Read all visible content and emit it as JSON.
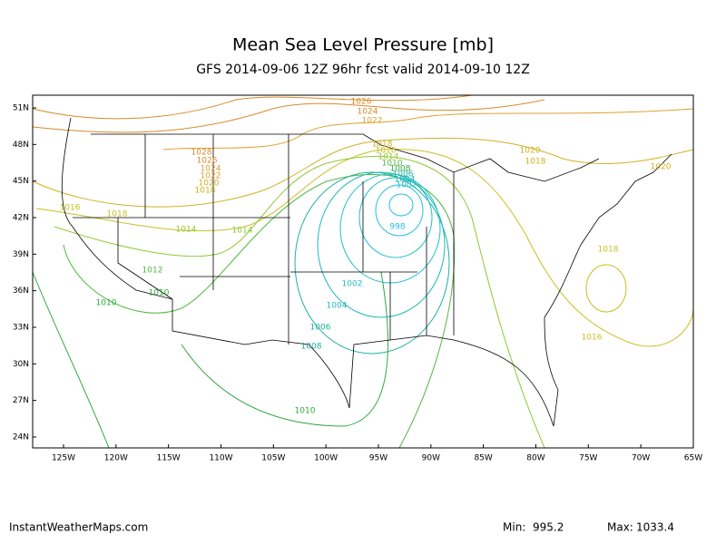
{
  "header": {
    "title": "Mean Sea Level Pressure [mb]",
    "subtitle": "GFS 2014-09-06 12Z 96hr fcst valid 2014-09-10 12Z"
  },
  "map": {
    "lat_labels": [
      "51N",
      "48N",
      "45N",
      "42N",
      "39N",
      "36N",
      "33N",
      "30N",
      "27N",
      "24N"
    ],
    "lon_labels": [
      "125W",
      "120W",
      "115W",
      "110W",
      "105W",
      "100W",
      "95W",
      "90W",
      "85W",
      "80W",
      "75W",
      "70W",
      "65W"
    ],
    "contour_labels": [
      "1026",
      "1024",
      "1022",
      "1028",
      "1026",
      "1024",
      "1022",
      "1020",
      "1018",
      "1018",
      "1016",
      "1014",
      "1010",
      "1008",
      "1006",
      "1004",
      "1002",
      "998",
      "1020",
      "1018",
      "1020",
      "1016",
      "1018",
      "1014",
      "1014",
      "1018",
      "1012",
      "1010",
      "1010",
      "1002",
      "1004",
      "1006",
      "1008",
      "1016",
      "1010"
    ]
  },
  "footer": {
    "site": "InstantWeatherMaps.com",
    "min_label": "Min:",
    "min": "995.2",
    "max_label": "Max:",
    "max": "1033.4"
  }
}
